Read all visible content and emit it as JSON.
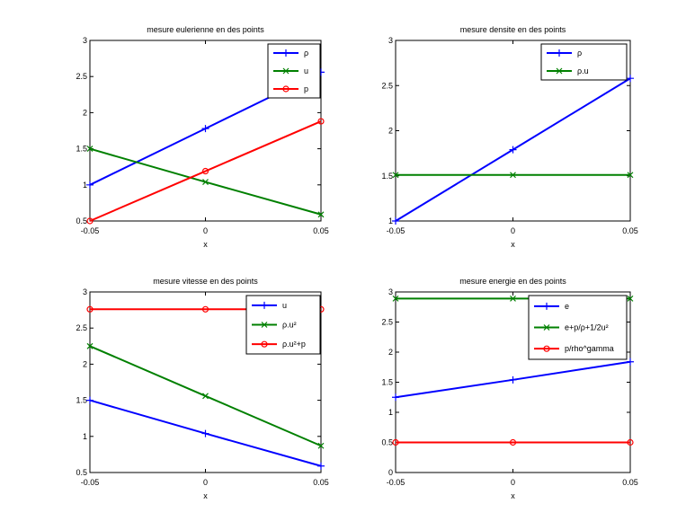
{
  "chart_data": [
    {
      "type": "line",
      "title": "mesure eulerienne en des points",
      "xlabel": "x",
      "ylabel": "",
      "xlim": [
        -0.05,
        0.05
      ],
      "ylim": [
        0.5,
        3
      ],
      "x": [
        -0.05,
        0,
        0.05
      ],
      "x_tick_labels": [
        "-0.05",
        "0",
        "0.05"
      ],
      "yticks": [
        0.5,
        1,
        1.5,
        2,
        2.5,
        3
      ],
      "y_tick_labels": [
        "0.5",
        "1",
        "1.5",
        "2",
        "2.5",
        "3"
      ],
      "legend_position": "top-right",
      "series": [
        {
          "name": "ρ",
          "values": [
            1.0,
            1.78,
            2.56
          ],
          "color": "#0000ff",
          "marker": "plus"
        },
        {
          "name": "u",
          "values": [
            1.5,
            1.04,
            0.59
          ],
          "color": "#008000",
          "marker": "x"
        },
        {
          "name": "p",
          "values": [
            0.5,
            1.19,
            1.88
          ],
          "color": "#ff0000",
          "marker": "circle"
        }
      ]
    },
    {
      "type": "line",
      "title": "mesure densite en des points",
      "xlabel": "x",
      "ylabel": "",
      "xlim": [
        -0.05,
        0.05
      ],
      "ylim": [
        1,
        3
      ],
      "x": [
        -0.05,
        0,
        0.05
      ],
      "x_tick_labels": [
        "-0.05",
        "0",
        "0.05"
      ],
      "yticks": [
        1,
        1.5,
        2,
        2.5,
        3
      ],
      "y_tick_labels": [
        "1",
        "1.5",
        "2",
        "2.5",
        "3"
      ],
      "legend_position": "top-right",
      "series": [
        {
          "name": "ρ",
          "values": [
            1.0,
            1.79,
            2.58
          ],
          "color": "#0000ff",
          "marker": "plus"
        },
        {
          "name": "ρ.u",
          "values": [
            1.51,
            1.51,
            1.51
          ],
          "color": "#008000",
          "marker": "x"
        }
      ]
    },
    {
      "type": "line",
      "title": "mesure vitesse en des points",
      "xlabel": "x",
      "ylabel": "",
      "xlim": [
        -0.05,
        0.05
      ],
      "ylim": [
        0.5,
        3
      ],
      "x": [
        -0.05,
        0,
        0.05
      ],
      "x_tick_labels": [
        "-0.05",
        "0",
        "0.05"
      ],
      "yticks": [
        0.5,
        1,
        1.5,
        2,
        2.5,
        3
      ],
      "y_tick_labels": [
        "0.5",
        "1",
        "1.5",
        "2",
        "2.5",
        "3"
      ],
      "legend_position": "top-right",
      "series": [
        {
          "name": "u",
          "values": [
            1.5,
            1.04,
            0.59
          ],
          "color": "#0000ff",
          "marker": "plus"
        },
        {
          "name": "ρ.u²",
          "values": [
            2.25,
            1.56,
            0.87
          ],
          "color": "#008000",
          "marker": "x"
        },
        {
          "name": "ρ.u²+p",
          "values": [
            2.76,
            2.76,
            2.76
          ],
          "color": "#ff0000",
          "marker": "circle"
        }
      ]
    },
    {
      "type": "line",
      "title": "mesure energie en des points",
      "xlabel": "x",
      "ylabel": "",
      "xlim": [
        -0.05,
        0.05
      ],
      "ylim": [
        0,
        3
      ],
      "x": [
        -0.05,
        0,
        0.05
      ],
      "x_tick_labels": [
        "-0.05",
        "0",
        "0.05"
      ],
      "yticks": [
        0,
        0.5,
        1,
        1.5,
        2,
        2.5,
        3
      ],
      "y_tick_labels": [
        "0",
        "0.5",
        "1",
        "1.5",
        "2",
        "2.5",
        "3"
      ],
      "legend_position": "top-right",
      "series": [
        {
          "name": "e",
          "values": [
            1.25,
            1.54,
            1.84
          ],
          "color": "#0000ff",
          "marker": "plus"
        },
        {
          "name": "e+p/ρ+1/2u²",
          "values": [
            2.89,
            2.89,
            2.89
          ],
          "color": "#008000",
          "marker": "x"
        },
        {
          "name": "p/rho^gamma",
          "values": [
            0.5,
            0.5,
            0.5
          ],
          "color": "#ff0000",
          "marker": "circle"
        }
      ]
    }
  ]
}
